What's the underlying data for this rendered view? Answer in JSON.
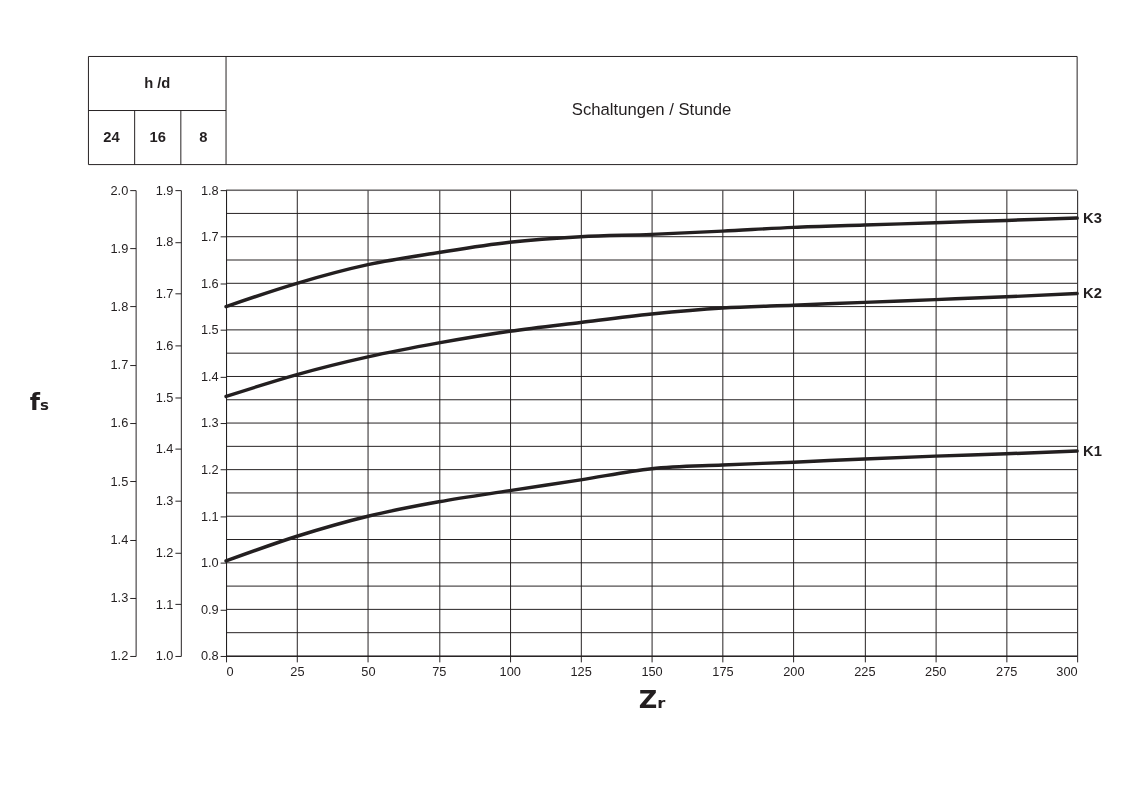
{
  "chart_data": {
    "type": "line",
    "title": "Schaltungen / Stunde",
    "xlabel": "Zᵣ",
    "y3label": "fₛ",
    "annotations": [
      "h /d",
      "24",
      "16",
      "8"
    ],
    "x": [
      0,
      25,
      50,
      75,
      100,
      125,
      150,
      175,
      200,
      225,
      250,
      275,
      300
    ],
    "series": [
      {
        "name": "K3",
        "color": "#231f20",
        "values": [
          1.55,
          1.6,
          1.64,
          1.666,
          1.688,
          1.7,
          1.705,
          1.712,
          1.72,
          1.725,
          1.73,
          1.735,
          1.74
        ]
      },
      {
        "name": "K2",
        "color": "#231f20",
        "values": [
          1.357,
          1.404,
          1.442,
          1.472,
          1.497,
          1.516,
          1.534,
          1.547,
          1.553,
          1.559,
          1.565,
          1.571,
          1.578
        ]
      },
      {
        "name": "K1",
        "color": "#231f20",
        "values": [
          1.004,
          1.057,
          1.1,
          1.131,
          1.155,
          1.178,
          1.202,
          1.21,
          1.216,
          1.223,
          1.229,
          1.234,
          1.24
        ]
      }
    ],
    "xlim": [
      0,
      300
    ],
    "xticks": [
      0,
      25,
      50,
      75,
      100,
      125,
      150,
      175,
      200,
      225,
      250,
      275,
      300
    ],
    "ylim": [
      0.8,
      1.8
    ],
    "yticks": [
      0.8,
      {
        "value": 0.85,
        "label": null
      },
      0.9,
      {
        "value": 0.95,
        "label": null
      },
      {
        "value": 1.0,
        "label": "1.0"
      },
      {
        "value": 1.05,
        "label": null
      },
      1.1,
      {
        "value": 1.15,
        "label": null
      },
      1.2,
      {
        "value": 1.25,
        "label": null
      },
      1.3,
      {
        "value": 1.35,
        "label": null
      },
      1.4,
      {
        "value": 1.45,
        "label": null
      },
      1.5,
      {
        "value": 1.55,
        "label": null
      },
      1.6,
      {
        "value": 1.65,
        "label": null
      },
      1.7,
      {
        "value": 1.75,
        "label": null
      },
      1.8
    ],
    "y2lim": [
      1.0,
      1.9
    ],
    "y2ticks": [
      {
        "value": 1.0,
        "label": "1.0"
      },
      1.1,
      1.2,
      1.3,
      1.4,
      1.5,
      1.6,
      1.7,
      1.8,
      1.9
    ],
    "y3lim": [
      1.2,
      2.0
    ],
    "y3ticks": [
      1.2,
      1.3,
      1.4,
      1.5,
      1.6,
      1.7,
      1.8,
      1.9,
      {
        "value": 2.0,
        "label": "2.0"
      }
    ],
    "grid": true,
    "legend": false,
    "marker": "none",
    "line_style": "solid"
  }
}
